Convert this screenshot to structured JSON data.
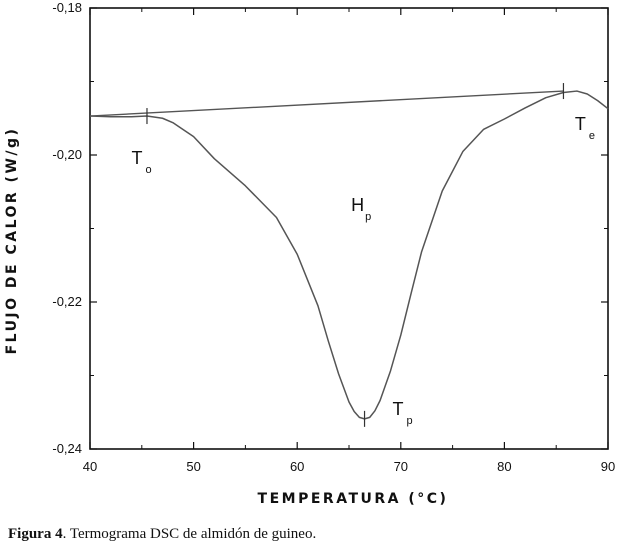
{
  "chart_data": {
    "type": "line",
    "title": "",
    "xlabel": "TEMPERATURA (°C)",
    "ylabel": "FLUJO DE CALOR (W/g)",
    "xlim": [
      40,
      90
    ],
    "ylim": [
      -0.24,
      -0.18
    ],
    "x_ticks": [
      40,
      50,
      60,
      70,
      80,
      90
    ],
    "x_tick_labels": [
      "40",
      "50",
      "60",
      "70",
      "80",
      "90"
    ],
    "y_ticks": [
      -0.18,
      -0.2,
      -0.22,
      -0.24
    ],
    "y_tick_labels": [
      "-0,18",
      "-0,20",
      "-0,22",
      "-0,24"
    ],
    "grid": false,
    "series": [
      {
        "color": "#555555",
        "x": [
          40,
          42,
          44,
          45.5,
          47,
          48,
          50,
          52,
          55,
          58,
          60,
          62,
          63,
          64,
          65,
          65.5,
          66,
          66.5,
          67,
          67.5,
          68,
          69,
          70,
          71,
          72,
          74,
          76,
          78,
          80,
          82,
          84,
          85.7,
          87,
          88,
          89,
          90
        ],
        "y": [
          -0.1947,
          -0.1948,
          -0.1948,
          -0.1947,
          -0.195,
          -0.1956,
          -0.1975,
          -0.2005,
          -0.2042,
          -0.2085,
          -0.2135,
          -0.2205,
          -0.2253,
          -0.2298,
          -0.2336,
          -0.2349,
          -0.2357,
          -0.2359,
          -0.2357,
          -0.2348,
          -0.2334,
          -0.2294,
          -0.2245,
          -0.2188,
          -0.2132,
          -0.2049,
          -0.1995,
          -0.1965,
          -0.1951,
          -0.1936,
          -0.1922,
          -0.1915,
          -0.1913,
          -0.1917,
          -0.1926,
          -0.1937
        ]
      }
    ],
    "baseline": {
      "x": [
        40,
        85.7
      ],
      "y": [
        -0.1947,
        -0.1913
      ]
    },
    "markers": [
      {
        "x": 45.5,
        "y": -0.1947
      },
      {
        "x": 66.5,
        "y": -0.2359
      },
      {
        "x": 85.7,
        "y": -0.1913
      }
    ],
    "annotations": [
      {
        "main": "T",
        "sub": "o",
        "x": 44.0,
        "y": -0.2012
      },
      {
        "main": "H",
        "sub": "p",
        "x": 65.2,
        "y": -0.2076
      },
      {
        "main": "T",
        "sub": "p",
        "x": 69.2,
        "y": -0.2354
      },
      {
        "main": "T",
        "sub": "e",
        "x": 86.8,
        "y": -0.1966
      }
    ]
  },
  "caption": {
    "label": "Figura 4",
    "text": ". Termograma DSC de almidón de guineo."
  }
}
